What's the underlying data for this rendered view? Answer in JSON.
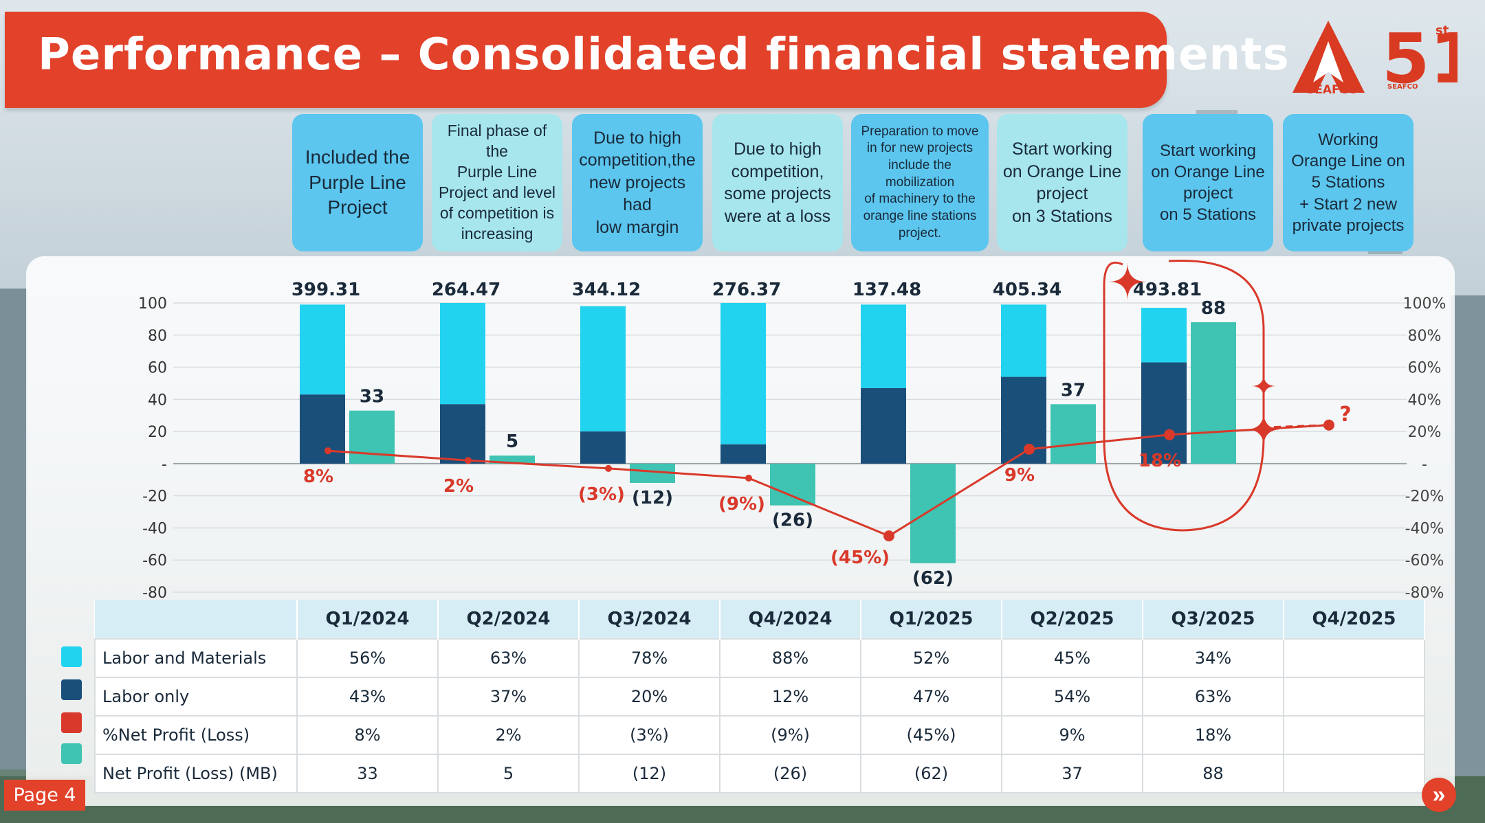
{
  "title": "Performance – Consolidated financial statements",
  "logo": {
    "brand": "SEAFCO",
    "anniversary": "51",
    "anniversary_suffix": "st",
    "sub_brand": "SEAFCO"
  },
  "page_label": "Page 4",
  "colors": {
    "title_bg": "#e2412a",
    "labor_materials": "#22d3f0",
    "labor_only": "#1a4f7a",
    "net_profit_pct": "#d9392a",
    "net_profit_mb": "#3fc3b2"
  },
  "annotations": [
    {
      "text": "Included the\nPurple Line\nProject",
      "bg": "#5cc6ee"
    },
    {
      "text": "Final phase of the\nPurple Line\nProject and level\nof competition is\nincreasing",
      "bg": "#a6e6ec"
    },
    {
      "text": "Due to high\ncompetition,the\nnew projects had\nlow margin",
      "bg": "#5cc6ee"
    },
    {
      "text": "Due to high\ncompetition,\nsome projects\nwere at a loss",
      "bg": "#a6e6ec"
    },
    {
      "text": "Preparation to move\nin for new projects\ninclude the mobilization\nof machinery to the\norange line stations\nproject.",
      "bg": "#5cc6ee"
    },
    {
      "text": "Start working\non Orange Line\nproject\non 3 Stations",
      "bg": "#a6e6ec"
    },
    {
      "text": "Start working\non Orange Line\nproject\non 5 Stations",
      "bg": "#5cc6ee"
    },
    {
      "text": "Working\nOrange Line on\n5 Stations\n+ Start 2 new\nprivate projects",
      "bg": "#5cc6ee"
    }
  ],
  "chart_data": {
    "type": "bar",
    "categories": [
      "Q1/2024",
      "Q2/2024",
      "Q3/2024",
      "Q4/2024",
      "Q1/2025",
      "Q2/2025",
      "Q3/2025",
      "Q4/2025"
    ],
    "left_axis": {
      "ylim": [
        -80,
        100
      ],
      "ticks": [
        "100",
        "80",
        "60",
        "40",
        "20",
        "-",
        "-20",
        "-40",
        "-60",
        "-80"
      ]
    },
    "right_axis": {
      "ticks": [
        "100%",
        "80%",
        "60%",
        "40%",
        "20%",
        "-",
        "-20%",
        "-40%",
        "-60%",
        "-80%"
      ]
    },
    "revenue_labels": [
      "399.31",
      "264.47",
      "344.12",
      "276.37",
      "137.48",
      "405.34",
      "493.81",
      ""
    ],
    "series": [
      {
        "name": "Labor and Materials",
        "values": [
          56,
          63,
          78,
          88,
          52,
          45,
          34,
          null
        ]
      },
      {
        "name": "Labor only",
        "values": [
          43,
          37,
          20,
          12,
          47,
          54,
          63,
          null
        ]
      },
      {
        "name": "%Net Profit (Loss)",
        "values": [
          8,
          2,
          -3,
          -9,
          -45,
          9,
          18,
          null
        ],
        "labels": [
          "8%",
          "2%",
          "(3%)",
          "(9%)",
          "(45%)",
          "9%",
          "18%",
          ""
        ]
      },
      {
        "name": "Net Profit (Loss) (MB)",
        "values": [
          33,
          5,
          -12,
          -26,
          -62,
          37,
          88,
          null
        ],
        "labels": [
          "33",
          "5",
          "(12)",
          "(26)",
          "(62)",
          "37",
          "88",
          ""
        ]
      }
    ],
    "forecast_marker": "?"
  },
  "table": {
    "columns": [
      "",
      "Q1/2024",
      "Q2/2024",
      "Q3/2024",
      "Q4/2024",
      "Q1/2025",
      "Q2/2025",
      "Q3/2025",
      "Q4/2025"
    ],
    "rows": [
      {
        "label": "Labor and Materials",
        "cells": [
          "56%",
          "63%",
          "78%",
          "88%",
          "52%",
          "45%",
          "34%",
          ""
        ]
      },
      {
        "label": "Labor only",
        "cells": [
          "43%",
          "37%",
          "20%",
          "12%",
          "47%",
          "54%",
          "63%",
          ""
        ]
      },
      {
        "label": "%Net Profit (Loss)",
        "cells": [
          "8%",
          "2%",
          "(3%)",
          "(9%)",
          "(45%)",
          "9%",
          "18%",
          ""
        ]
      },
      {
        "label": "Net Profit (Loss) (MB)",
        "cells": [
          "33",
          "5",
          "(12)",
          "(26)",
          "(62)",
          "37",
          "88",
          ""
        ]
      }
    ]
  }
}
